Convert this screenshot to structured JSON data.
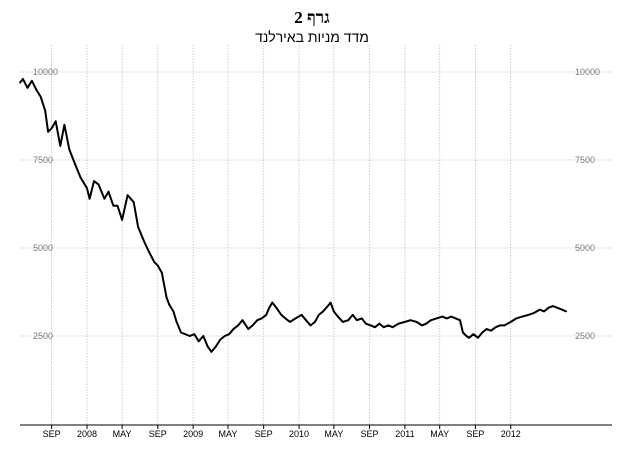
{
  "chart_data": {
    "type": "line",
    "title": "גרף 2",
    "subtitle": "מדד מניות באירלנד",
    "ylim": [
      0,
      10500
    ],
    "y_ticks": [
      {
        "value": 10000,
        "label": "10000"
      },
      {
        "value": 7500,
        "label": "7500"
      },
      {
        "value": 5000,
        "label": "5000"
      },
      {
        "value": 2500,
        "label": "2500"
      }
    ],
    "xlim": [
      "2007-05-15",
      "2012-12-15"
    ],
    "x_ticks": [
      {
        "date": "2007-09-01",
        "label": "SEP"
      },
      {
        "date": "2008-01-01",
        "label": "2008"
      },
      {
        "date": "2008-05-01",
        "label": "MAY"
      },
      {
        "date": "2008-09-01",
        "label": "SEP"
      },
      {
        "date": "2009-01-01",
        "label": "2009"
      },
      {
        "date": "2009-05-01",
        "label": "MAY"
      },
      {
        "date": "2009-09-01",
        "label": "SEP"
      },
      {
        "date": "2010-01-01",
        "label": "2010"
      },
      {
        "date": "2010-05-01",
        "label": "MAY"
      },
      {
        "date": "2010-09-01",
        "label": "SEP"
      },
      {
        "date": "2011-01-01",
        "label": "2011"
      },
      {
        "date": "2011-05-01",
        "label": "MAY"
      },
      {
        "date": "2011-09-01",
        "label": "SEP"
      },
      {
        "date": "2012-01-01",
        "label": "2012"
      }
    ],
    "grid": true,
    "series": [
      {
        "name": "",
        "points": [
          [
            "2007-05-15",
            9700
          ],
          [
            "2007-05-25",
            9800
          ],
          [
            "2007-06-10",
            9550
          ],
          [
            "2007-06-25",
            9750
          ],
          [
            "2007-07-10",
            9500
          ],
          [
            "2007-07-25",
            9300
          ],
          [
            "2007-08-10",
            8900
          ],
          [
            "2007-08-20",
            8300
          ],
          [
            "2007-09-01",
            8400
          ],
          [
            "2007-09-15",
            8600
          ],
          [
            "2007-10-01",
            7900
          ],
          [
            "2007-10-15",
            8500
          ],
          [
            "2007-11-01",
            7800
          ],
          [
            "2007-11-20",
            7400
          ],
          [
            "2007-12-10",
            7000
          ],
          [
            "2008-01-01",
            6700
          ],
          [
            "2008-01-10",
            6400
          ],
          [
            "2008-01-25",
            6900
          ],
          [
            "2008-02-10",
            6800
          ],
          [
            "2008-03-01",
            6400
          ],
          [
            "2008-03-15",
            6600
          ],
          [
            "2008-04-01",
            6200
          ],
          [
            "2008-04-15",
            6200
          ],
          [
            "2008-05-01",
            5800
          ],
          [
            "2008-05-20",
            6500
          ],
          [
            "2008-06-10",
            6300
          ],
          [
            "2008-06-25",
            5600
          ],
          [
            "2008-07-15",
            5200
          ],
          [
            "2008-08-01",
            4900
          ],
          [
            "2008-08-20",
            4600
          ],
          [
            "2008-09-01",
            4500
          ],
          [
            "2008-09-15",
            4300
          ],
          [
            "2008-10-01",
            3600
          ],
          [
            "2008-10-10",
            3400
          ],
          [
            "2008-10-25",
            3200
          ],
          [
            "2008-11-05",
            2900
          ],
          [
            "2008-11-20",
            2600
          ],
          [
            "2008-12-05",
            2550
          ],
          [
            "2008-12-20",
            2500
          ],
          [
            "2009-01-05",
            2550
          ],
          [
            "2009-01-20",
            2350
          ],
          [
            "2009-02-05",
            2500
          ],
          [
            "2009-02-20",
            2200
          ],
          [
            "2009-03-05",
            2050
          ],
          [
            "2009-03-20",
            2200
          ],
          [
            "2009-04-05",
            2400
          ],
          [
            "2009-04-20",
            2500
          ],
          [
            "2009-05-05",
            2550
          ],
          [
            "2009-05-20",
            2700
          ],
          [
            "2009-06-05",
            2800
          ],
          [
            "2009-06-20",
            2950
          ],
          [
            "2009-07-10",
            2700
          ],
          [
            "2009-07-25",
            2800
          ],
          [
            "2009-08-10",
            2950
          ],
          [
            "2009-08-25",
            3000
          ],
          [
            "2009-09-10",
            3100
          ],
          [
            "2009-09-20",
            3300
          ],
          [
            "2009-10-01",
            3450
          ],
          [
            "2009-10-15",
            3300
          ],
          [
            "2009-11-01",
            3100
          ],
          [
            "2009-11-15",
            3000
          ],
          [
            "2009-12-01",
            2900
          ],
          [
            "2009-12-20",
            3000
          ],
          [
            "2010-01-10",
            3100
          ],
          [
            "2010-01-25",
            2950
          ],
          [
            "2010-02-10",
            2800
          ],
          [
            "2010-02-25",
            2900
          ],
          [
            "2010-03-10",
            3100
          ],
          [
            "2010-03-25",
            3200
          ],
          [
            "2010-04-10",
            3350
          ],
          [
            "2010-04-20",
            3450
          ],
          [
            "2010-05-01",
            3200
          ],
          [
            "2010-05-15",
            3050
          ],
          [
            "2010-06-01",
            2900
          ],
          [
            "2010-06-20",
            2950
          ],
          [
            "2010-07-05",
            3100
          ],
          [
            "2010-07-20",
            2950
          ],
          [
            "2010-08-05",
            3000
          ],
          [
            "2010-08-20",
            2850
          ],
          [
            "2010-09-05",
            2800
          ],
          [
            "2010-09-20",
            2750
          ],
          [
            "2010-10-05",
            2850
          ],
          [
            "2010-10-20",
            2750
          ],
          [
            "2010-11-05",
            2800
          ],
          [
            "2010-11-20",
            2750
          ],
          [
            "2010-12-10",
            2850
          ],
          [
            "2011-01-01",
            2900
          ],
          [
            "2011-01-20",
            2950
          ],
          [
            "2011-02-10",
            2900
          ],
          [
            "2011-03-01",
            2800
          ],
          [
            "2011-03-15",
            2850
          ],
          [
            "2011-04-01",
            2950
          ],
          [
            "2011-04-20",
            3000
          ],
          [
            "2011-05-10",
            3050
          ],
          [
            "2011-05-25",
            3000
          ],
          [
            "2011-06-10",
            3050
          ],
          [
            "2011-06-25",
            3000
          ],
          [
            "2011-07-10",
            2950
          ],
          [
            "2011-07-20",
            2600
          ],
          [
            "2011-08-01",
            2500
          ],
          [
            "2011-08-10",
            2450
          ],
          [
            "2011-08-25",
            2550
          ],
          [
            "2011-09-10",
            2450
          ],
          [
            "2011-09-25",
            2600
          ],
          [
            "2011-10-10",
            2700
          ],
          [
            "2011-10-25",
            2650
          ],
          [
            "2011-11-10",
            2750
          ],
          [
            "2011-11-25",
            2800
          ],
          [
            "2011-12-10",
            2800
          ],
          [
            "2012-01-01",
            2900
          ],
          [
            "2012-01-20",
            3000
          ],
          [
            "2012-02-10",
            3050
          ],
          [
            "2012-03-01",
            3100
          ],
          [
            "2012-03-20",
            3150
          ],
          [
            "2012-04-10",
            3250
          ],
          [
            "2012-04-25",
            3200
          ],
          [
            "2012-05-10",
            3300
          ],
          [
            "2012-05-25",
            3350
          ],
          [
            "2012-06-10",
            3300
          ],
          [
            "2012-06-25",
            3250
          ],
          [
            "2012-07-10",
            3200
          ]
        ]
      }
    ]
  }
}
